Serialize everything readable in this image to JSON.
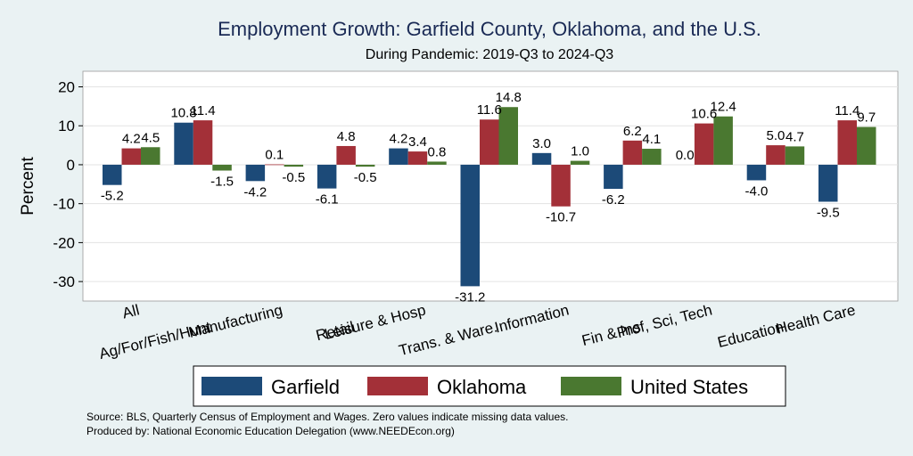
{
  "chart_data": {
    "type": "bar",
    "title": "Employment Growth: Garfield County, Oklahoma, and the U.S.",
    "subtitle": "During Pandemic: 2019-Q3 to 2024-Q3",
    "ylabel": "Percent",
    "xlabel": "",
    "ylim": [
      -35,
      24
    ],
    "yticks": [
      20,
      10,
      0,
      -10,
      -20,
      -30
    ],
    "grid": true,
    "legend_position": "bottom",
    "categories": [
      "All",
      "Ag/For/Fish/Hunt",
      "Manufacturing",
      "Retail",
      "Leisure & Hosp",
      "Trans. & Ware.",
      "Information",
      "Fin & Ins",
      "Prof, Sci, Tech",
      "Education",
      "Health Care"
    ],
    "series": [
      {
        "name": "Garfield",
        "color": "#1c4a78",
        "values": [
          -5.2,
          10.8,
          -4.2,
          -6.1,
          4.2,
          -31.2,
          3.0,
          -6.2,
          0.0,
          -4.0,
          -9.5
        ]
      },
      {
        "name": "Oklahoma",
        "color": "#a33038",
        "values": [
          4.2,
          11.4,
          0.1,
          4.8,
          3.4,
          11.6,
          -10.7,
          6.2,
          10.6,
          5.0,
          11.4
        ]
      },
      {
        "name": "United States",
        "color": "#4a7830",
        "values": [
          4.5,
          -1.5,
          -0.5,
          -0.5,
          0.8,
          14.8,
          1.0,
          4.1,
          12.4,
          4.7,
          9.7
        ]
      }
    ],
    "source_note": "Source: BLS, Quarterly Census of Employment and Wages. Zero values indicate missing data values.",
    "producer_note": "Produced by: National Economic Education Delegation (www.NEEDEcon.org)"
  }
}
